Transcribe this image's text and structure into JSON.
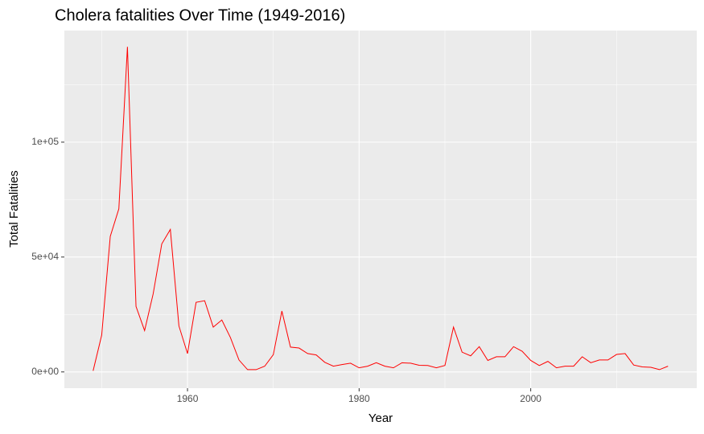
{
  "chart_data": {
    "type": "line",
    "title": "Cholera fatalities Over Time (1949-2016)",
    "x_label": "Year",
    "y_label": "Total Fatalities",
    "x": [
      1949,
      1950,
      1951,
      1952,
      1953,
      1954,
      1955,
      1956,
      1957,
      1958,
      1959,
      1960,
      1961,
      1962,
      1963,
      1964,
      1965,
      1966,
      1967,
      1968,
      1969,
      1970,
      1971,
      1972,
      1973,
      1974,
      1975,
      1976,
      1977,
      1978,
      1979,
      1980,
      1981,
      1982,
      1983,
      1984,
      1985,
      1986,
      1987,
      1988,
      1989,
      1990,
      1991,
      1992,
      1993,
      1994,
      1995,
      1996,
      1997,
      1998,
      1999,
      2000,
      2001,
      2002,
      2003,
      2004,
      2005,
      2006,
      2007,
      2008,
      2009,
      2010,
      2011,
      2012,
      2013,
      2014,
      2015,
      2016
    ],
    "values": [
      500,
      16000,
      59000,
      71000,
      141500,
      28500,
      18000,
      34000,
      55700,
      62000,
      20000,
      8000,
      30300,
      31000,
      19500,
      22600,
      15000,
      5200,
      1000,
      1000,
      2500,
      7500,
      26500,
      10800,
      10400,
      8000,
      7400,
      4200,
      2500,
      3200,
      3800,
      1800,
      2500,
      4000,
      2500,
      1800,
      4000,
      3800,
      2900,
      2800,
      1800,
      2800,
      19500,
      8600,
      7000,
      11000,
      5000,
      6600,
      6600,
      11000,
      9000,
      5000,
      2800,
      4600,
      1800,
      2500,
      2500,
      6600,
      4000,
      5200,
      5200,
      7600,
      8000,
      3000,
      2200,
      2000,
      1000,
      2500
    ],
    "color": "#ff0000",
    "xlim": [
      1945.65,
      2019.35
    ],
    "xticks": [
      1960,
      1980,
      2000
    ],
    "ylim": [
      -7075,
      148575
    ],
    "yticks": [
      {
        "value": 0,
        "label": "0e+00"
      },
      {
        "value": 50000,
        "label": "5e+04"
      },
      {
        "value": 100000,
        "label": "1e+05"
      }
    ],
    "grid": true,
    "minor_grid": true
  }
}
